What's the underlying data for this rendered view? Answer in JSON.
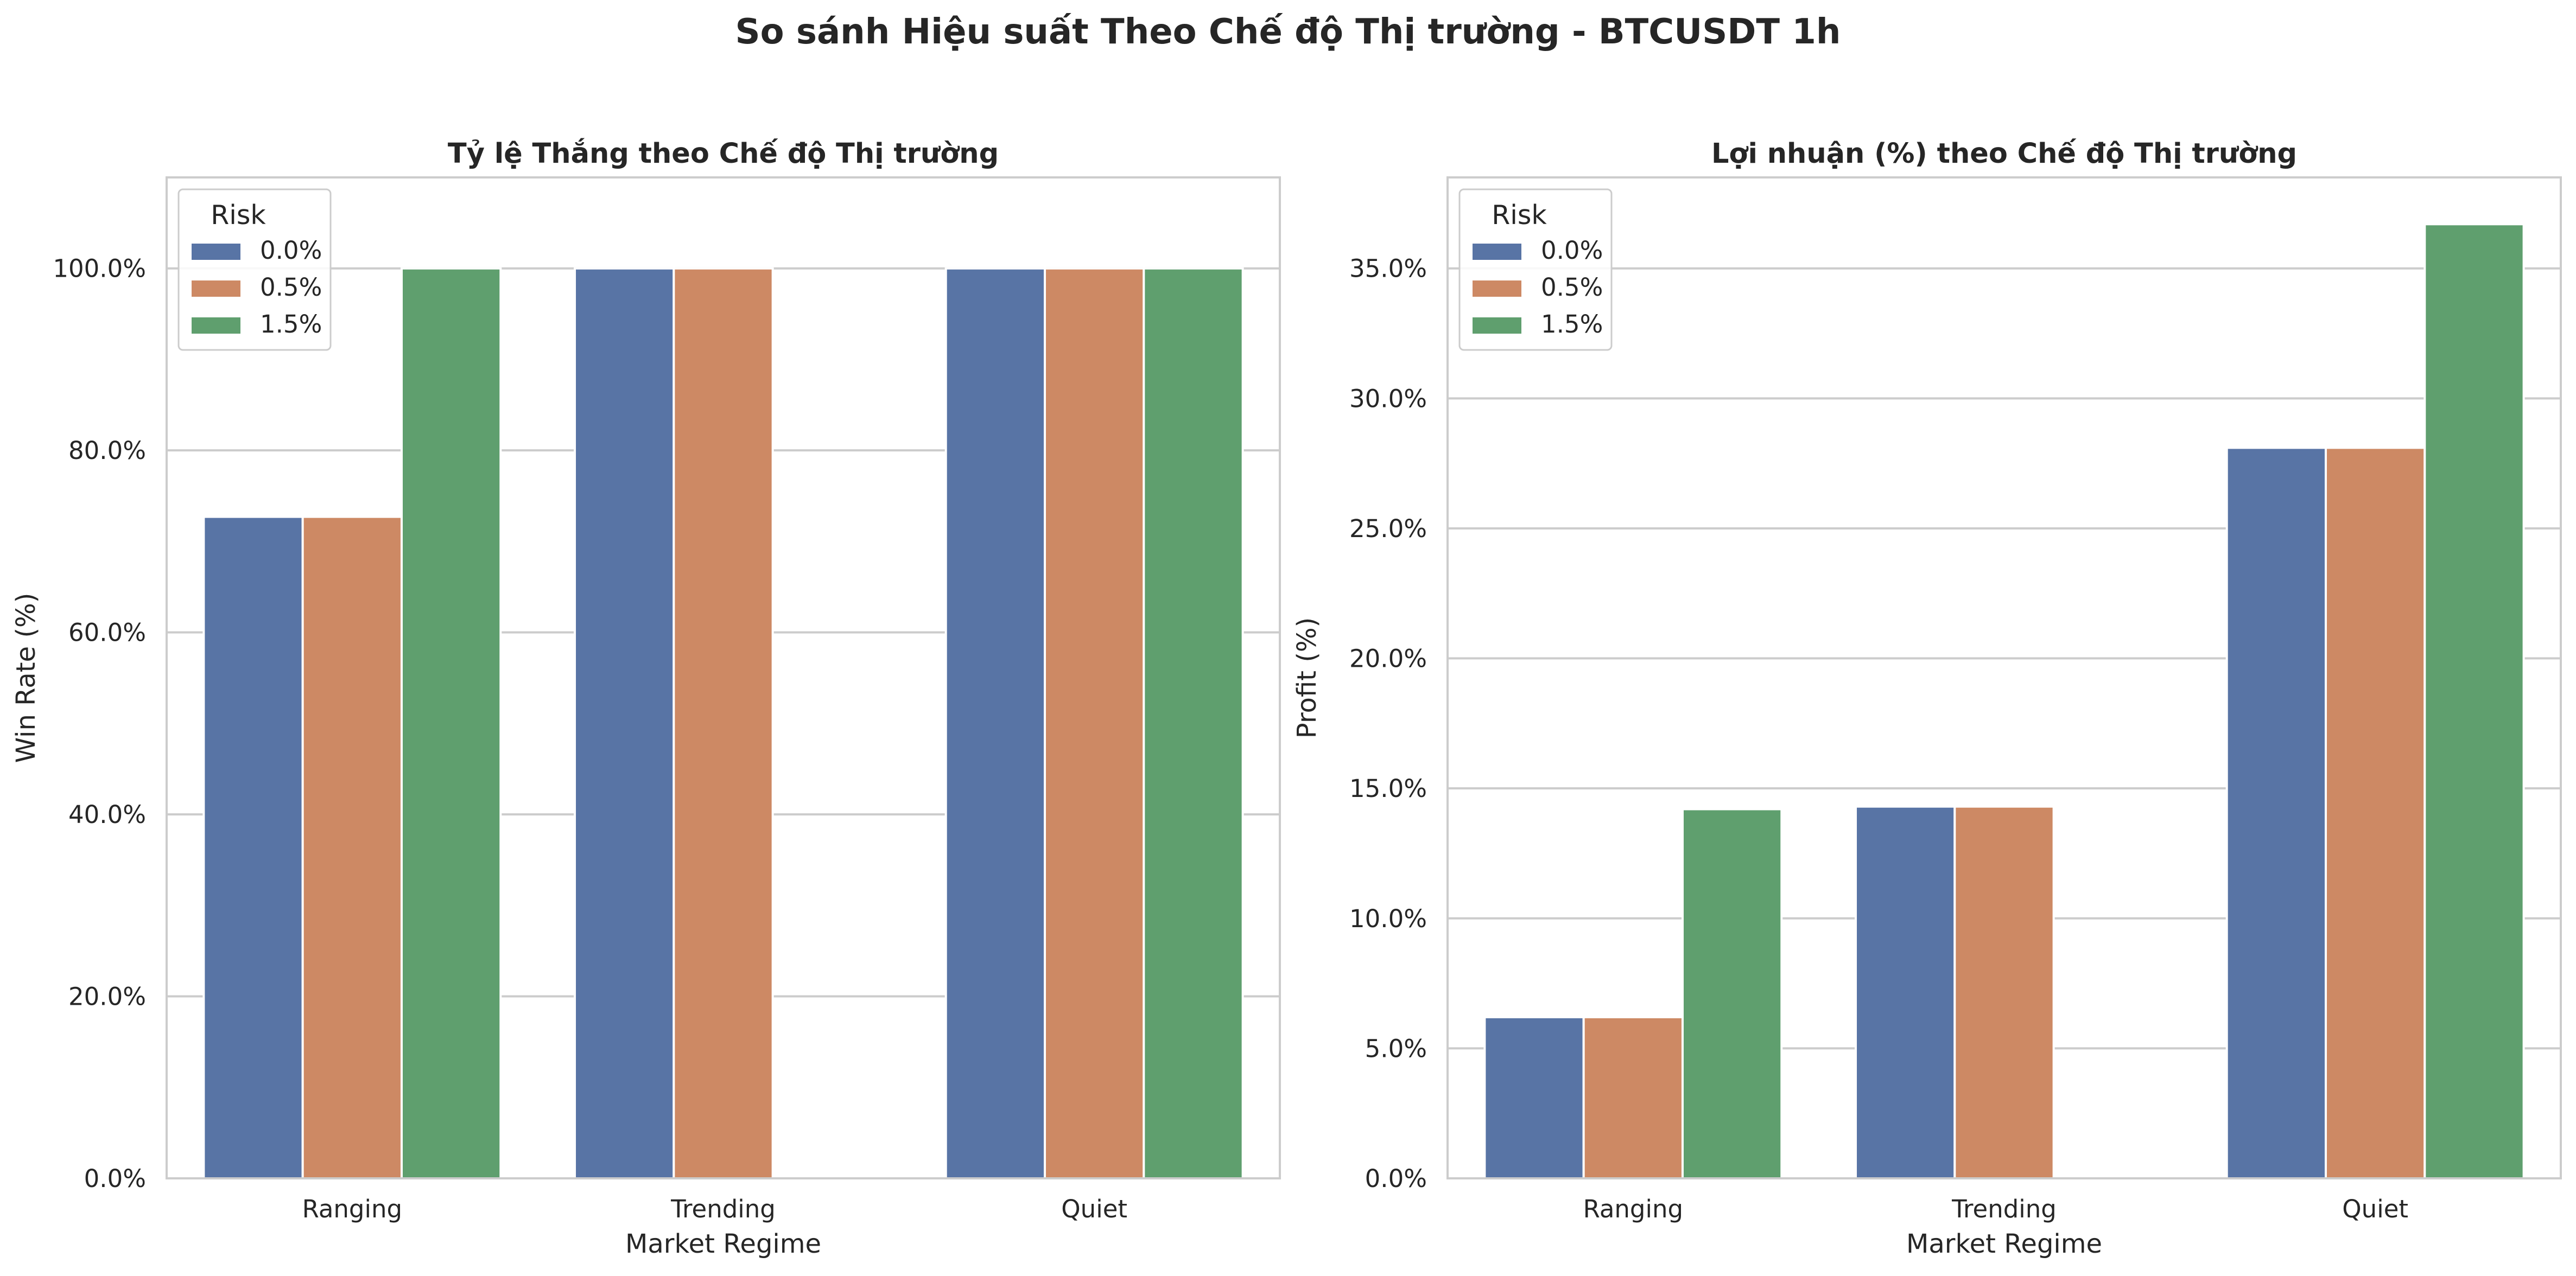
{
  "suptitle": "So sánh Hiệu suất Theo Chế độ Thị trường - BTCUSDT 1h",
  "colors": {
    "0.0%": "#5874a5",
    "0.5%": "#cd8964",
    "1.5%": "#5f9f6e"
  },
  "chart_data": [
    {
      "type": "bar",
      "title": "Tỷ lệ Thắng theo Chế độ Thị trường",
      "xlabel": "Market Regime",
      "ylabel": "Win Rate (%)",
      "categories": [
        "Ranging",
        "Trending",
        "Quiet"
      ],
      "ylim": [
        0,
        110
      ],
      "yticks": [
        0,
        20,
        40,
        60,
        80,
        100
      ],
      "ytick_labels": [
        "0.0%",
        "20.0%",
        "40.0%",
        "60.0%",
        "80.0%",
        "100.0%"
      ],
      "legend_title": "Risk",
      "legend_position": "upper left",
      "grid": true,
      "series": [
        {
          "name": "0.0%",
          "values": [
            72.7,
            100,
            100
          ]
        },
        {
          "name": "0.5%",
          "values": [
            72.7,
            100,
            100
          ]
        },
        {
          "name": "1.5%",
          "values": [
            100,
            null,
            100
          ]
        }
      ]
    },
    {
      "type": "bar",
      "title": "Lợi nhuận (%) theo Chế độ Thị trường",
      "xlabel": "Market Regime",
      "ylabel": "Profit (%)",
      "categories": [
        "Ranging",
        "Trending",
        "Quiet"
      ],
      "ylim": [
        0,
        38.5
      ],
      "yticks": [
        0,
        5,
        10,
        15,
        20,
        25,
        30,
        35
      ],
      "ytick_labels": [
        "0.0%",
        "5.0%",
        "10.0%",
        "15.0%",
        "20.0%",
        "25.0%",
        "30.0%",
        "35.0%"
      ],
      "legend_title": "Risk",
      "legend_position": "upper left",
      "grid": true,
      "series": [
        {
          "name": "0.0%",
          "values": [
            6.2,
            14.3,
            28.1
          ]
        },
        {
          "name": "0.5%",
          "values": [
            6.2,
            14.3,
            28.1
          ]
        },
        {
          "name": "1.5%",
          "values": [
            14.2,
            null,
            36.7
          ]
        }
      ]
    }
  ]
}
